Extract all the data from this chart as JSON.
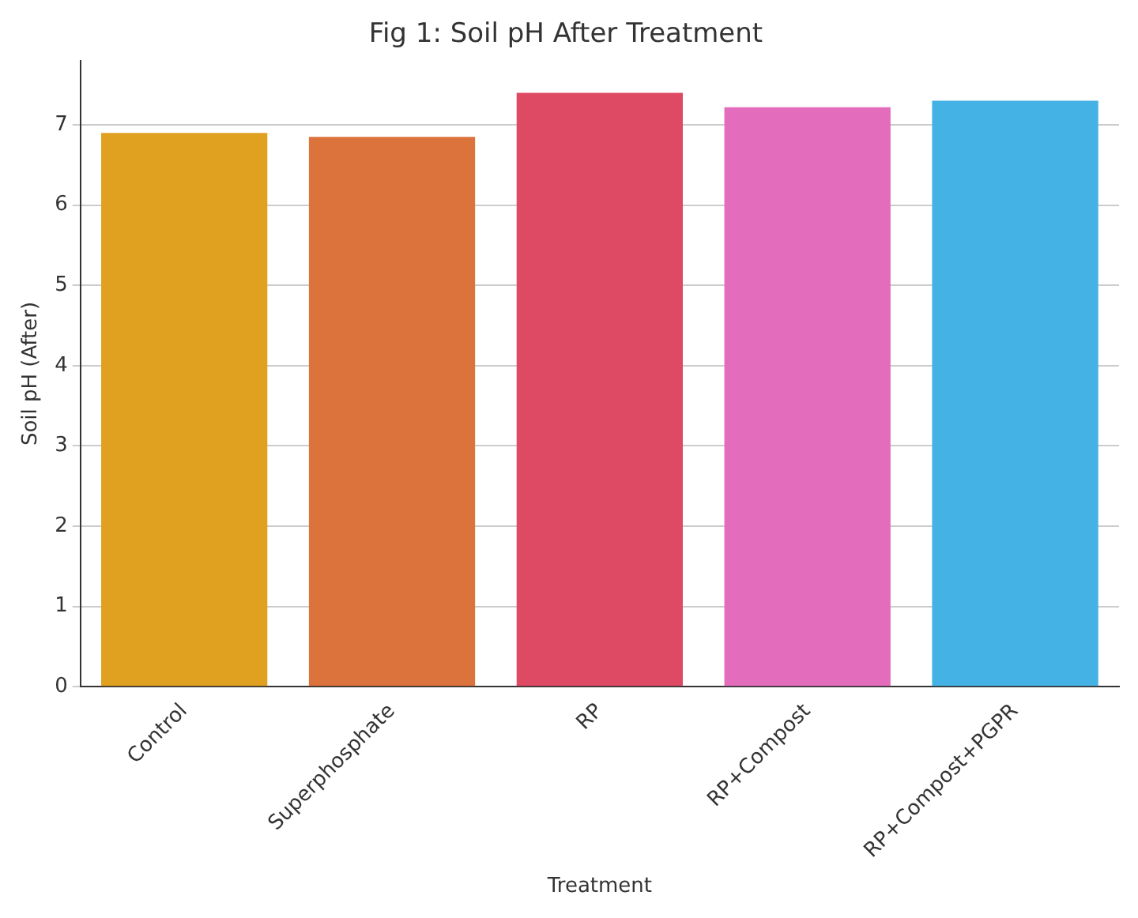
{
  "chart_data": {
    "type": "bar",
    "title": "Fig 1: Soil pH After Treatment",
    "xlabel": "Treatment",
    "ylabel": "Soil pH (After)",
    "categories": [
      "Control",
      "Superphosphate",
      "RP",
      "RP+Compost",
      "RP+Compost+PGPR"
    ],
    "values": [
      6.9,
      6.85,
      7.4,
      7.22,
      7.3
    ],
    "colors": [
      "#e0a020",
      "#dc723c",
      "#de4a64",
      "#e46cbc",
      "#44b2e4"
    ],
    "ylim": [
      0,
      7.8
    ],
    "yticks": [
      0,
      1,
      2,
      3,
      4,
      5,
      6,
      7
    ],
    "grid": "y"
  }
}
